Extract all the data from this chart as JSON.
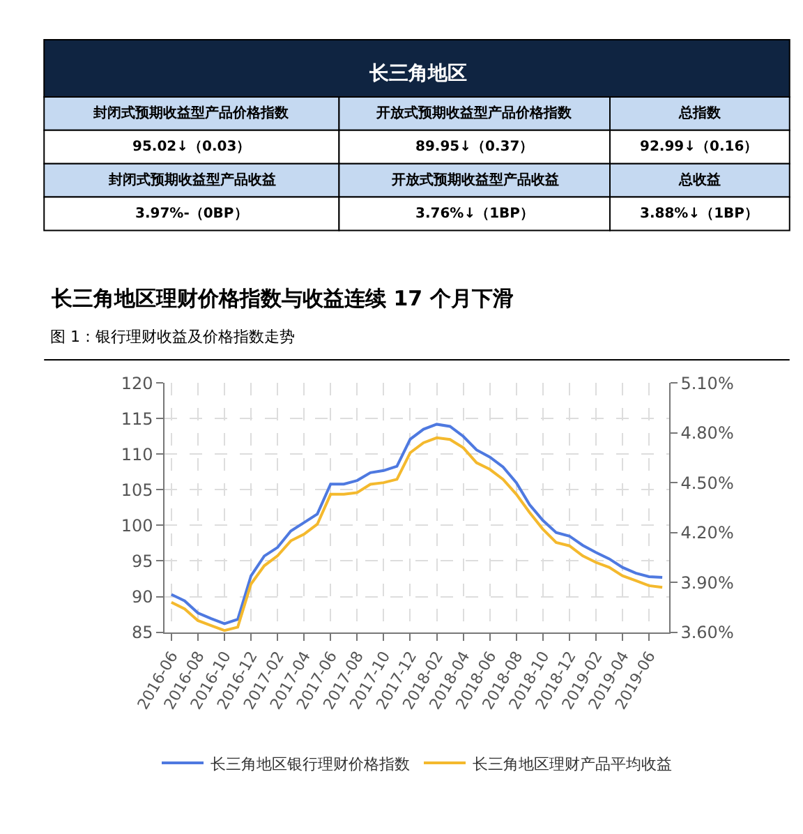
{
  "chart_data": [
    {
      "type": "other",
      "title": "长三角地区",
      "annotations": [
        "封闭式预期收益型产品价格指数",
        "开放式预期收益型产品价格指数",
        "总指数",
        "95.02↓（0.03）",
        "89.95↓（0.37）",
        "92.99↓（0.16）",
        "封闭式预期收益型产品收益",
        "开放式预期收益型产品收益",
        "总收益",
        "3.97%-（0BP）",
        "3.76%↓（1BP）",
        "3.88%↓（1BP）"
      ]
    },
    {
      "type": "line",
      "title": "长三角地区理财价格指数与收益连续 17 个月下滑",
      "subtitle": "图 1：银行理财收益及价格指数走势",
      "categories": [
        "2016-06",
        null,
        "2016-08",
        null,
        "2016-10",
        null,
        "2016-12",
        null,
        "2017-02",
        null,
        "2017-04",
        null,
        "2017-06",
        null,
        "2017-08",
        null,
        "2017-10",
        null,
        "2017-12",
        null,
        "2018-02",
        null,
        "2018-04",
        null,
        "2018-06",
        null,
        "2018-08",
        null,
        "2018-10",
        null,
        "2018-12",
        null,
        "2019-02",
        null,
        "2019-04",
        null,
        "2019-06",
        null
      ],
      "series": [
        {
          "name": "长三角地区银行理财价格指数",
          "color": "#4e79e0",
          "values": [
            90.3,
            89.4,
            87.7,
            86.9,
            86.2,
            86.8,
            92.9,
            95.7,
            96.9,
            99.2,
            100.4,
            101.6,
            105.8,
            105.8,
            106.3,
            107.4,
            107.7,
            108.3,
            112.1,
            113.5,
            114.2,
            113.9,
            112.5,
            110.6,
            109.6,
            108.2,
            106.0,
            102.9,
            100.7,
            99.0,
            98.5,
            97.2,
            96.2,
            95.3,
            94.1,
            93.3,
            92.8,
            92.7
          ]
        },
        {
          "name": "长三角地区理财产品平均收益",
          "color": "#f4b92d",
          "axis": "y2",
          "values": [
            3.78,
            3.74,
            3.67,
            3.64,
            3.61,
            3.63,
            3.89,
            4.0,
            4.06,
            4.15,
            4.19,
            4.25,
            4.43,
            4.43,
            4.44,
            4.49,
            4.5,
            4.52,
            4.68,
            4.74,
            4.77,
            4.76,
            4.71,
            4.62,
            4.58,
            4.52,
            4.43,
            4.32,
            4.22,
            4.14,
            4.12,
            4.06,
            4.02,
            3.99,
            3.94,
            3.91,
            3.88,
            3.87
          ]
        }
      ],
      "ylim": [
        85,
        120
      ],
      "yticks": [
        85,
        90,
        95,
        100,
        105,
        110,
        115,
        120
      ],
      "y2lim": [
        3.6,
        5.1
      ],
      "y2ticks": [
        {
          "value": 3.6,
          "label": "3.60%"
        },
        {
          "value": 3.9,
          "label": "3.90%"
        },
        {
          "value": 4.2,
          "label": "4.20%"
        },
        {
          "value": 4.5,
          "label": "4.50%"
        },
        {
          "value": 4.8,
          "label": "4.80%"
        },
        {
          "value": 5.1,
          "label": "5.10%"
        }
      ],
      "grid": true,
      "legend": "bottom",
      "marker": "none",
      "line_style": "solid"
    }
  ]
}
